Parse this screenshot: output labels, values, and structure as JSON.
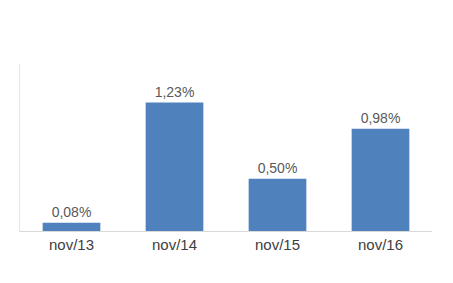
{
  "chart_data": {
    "type": "bar",
    "categories": [
      "nov/13",
      "nov/14",
      "nov/15",
      "nov/16"
    ],
    "values": [
      0.08,
      1.23,
      0.5,
      0.98
    ],
    "value_labels": [
      "0,08%",
      "1,23%",
      "0,50%",
      "0,98%"
    ],
    "color": "#4f81bd",
    "ylim": [
      0,
      1.6
    ],
    "grid": false,
    "data_labels": true,
    "tick_labels": "x"
  }
}
